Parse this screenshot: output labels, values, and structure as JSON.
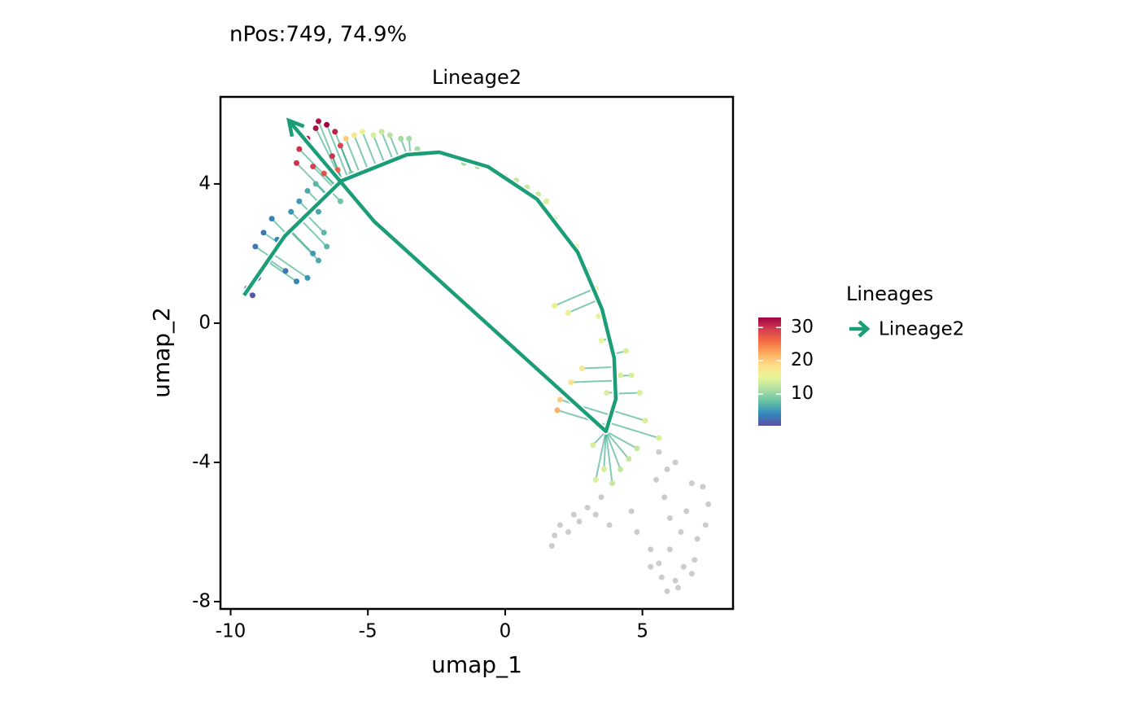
{
  "chart_data": {
    "type": "scatter",
    "title": "nPos:749, 74.9%",
    "subtitle": "Lineage2",
    "xlabel": "umap_1",
    "ylabel": "umap_2",
    "xlim": [
      -10.37,
      8.3
    ],
    "ylim": [
      -8.21,
      6.5
    ],
    "xticks": [
      -10,
      -5,
      0,
      5
    ],
    "yticks": [
      -8,
      -4,
      0,
      4
    ],
    "series": [
      {
        "x": [
          -9.4,
          -9.2,
          -9.0,
          -8.8,
          -9.1,
          -8.5,
          -8.3,
          -8.0,
          -7.6,
          -7.2,
          -7.0,
          -6.8,
          -7.5,
          -7.2,
          -6.8,
          -6.6,
          -6.5,
          -7.8,
          -6.9,
          -8.6,
          -7.5,
          -7.2,
          -6.9,
          -6.5,
          -6.2,
          -7.0,
          -6.6,
          -6.3,
          -6.0,
          -7.6,
          -6.8,
          -6.1,
          -5.8,
          -5.5,
          -5.2,
          -4.8,
          -4.5,
          -4.2,
          -3.8,
          -3.5,
          -5.9,
          -5.6,
          -6.0,
          -3.2,
          -2.5,
          -2.0,
          -1.5,
          -1.0,
          -0.5,
          0.0,
          0.4,
          0.8,
          1.2,
          1.5,
          1.8,
          2.2,
          2.6,
          3.0,
          3.3,
          1.8,
          2.3,
          3.4,
          3.5,
          4.4,
          4.6,
          4.9,
          5.1,
          5.6,
          2.8,
          2.4,
          2.0,
          1.9,
          3.2,
          3.6,
          3.9,
          4.2,
          4.5,
          3.3,
          4.8,
          4.2,
          3.7
        ],
        "y": [
          1.0,
          0.8,
          1.3,
          2.6,
          2.2,
          3.0,
          2.4,
          1.5,
          1.2,
          1.3,
          2.0,
          1.8,
          3.5,
          3.8,
          3.2,
          2.6,
          2.2,
          3.2,
          4.0,
          1.8,
          5.0,
          5.3,
          5.6,
          5.7,
          5.5,
          4.5,
          4.3,
          4.8,
          5.1,
          4.6,
          5.8,
          4.4,
          5.3,
          5.4,
          5.5,
          5.4,
          5.5,
          5.4,
          5.3,
          5.3,
          4.0,
          4.3,
          3.5,
          5.0,
          4.9,
          4.8,
          4.6,
          4.5,
          4.4,
          4.2,
          4.1,
          3.9,
          3.7,
          3.5,
          3.0,
          2.5,
          2.2,
          1.5,
          1.0,
          0.5,
          0.3,
          0.2,
          -0.5,
          -0.8,
          -1.5,
          -2.0,
          -2.8,
          -3.3,
          -1.3,
          -1.7,
          -2.2,
          -2.5,
          -3.5,
          -4.2,
          -4.6,
          -4.2,
          -3.9,
          -4.5,
          -3.6,
          -1.5,
          -2.0
        ],
        "color_values": [
          2,
          1,
          2,
          3,
          3,
          4,
          4,
          3,
          4,
          5,
          5,
          6,
          5,
          6,
          6,
          7,
          7,
          5,
          7,
          3,
          30,
          31,
          32,
          33,
          31,
          29,
          28,
          30,
          29,
          30,
          32,
          27,
          20,
          17,
          15,
          14,
          13,
          12,
          11,
          11,
          9,
          9,
          8,
          11,
          10,
          11,
          11,
          12,
          12,
          12,
          13,
          13,
          13,
          14,
          14,
          14,
          15,
          15,
          15,
          16,
          16,
          15,
          15,
          14,
          14,
          14,
          14,
          14,
          17,
          18,
          20,
          22,
          14,
          14,
          13,
          13,
          13,
          14,
          13,
          14,
          14
        ]
      },
      {
        "color": "#cccccc",
        "x": [
          3.5,
          3.3,
          3.0,
          2.5,
          2.0,
          1.8,
          1.7,
          2.3,
          2.7,
          3.8,
          4.6,
          4.8,
          5.3,
          5.5,
          5.6,
          5.9,
          6.2,
          5.8,
          6.0,
          6.4,
          6.8,
          7.2,
          7.4,
          7.3,
          7.0,
          6.9,
          6.5,
          6.2,
          6.3,
          5.7,
          5.6,
          5.3,
          6.0,
          6.6,
          6.8,
          5.9
        ],
        "y": [
          -5.0,
          -5.5,
          -5.3,
          -5.5,
          -5.8,
          -6.1,
          -6.4,
          -6.0,
          -5.7,
          -5.8,
          -5.4,
          -6.0,
          -6.5,
          -4.5,
          -3.7,
          -4.2,
          -4.0,
          -5.0,
          -5.6,
          -6.0,
          -4.6,
          -4.7,
          -5.2,
          -5.8,
          -6.2,
          -6.8,
          -7.0,
          -7.4,
          -7.6,
          -7.3,
          -6.9,
          -7.0,
          -6.5,
          -5.4,
          -7.2,
          -7.7
        ]
      }
    ],
    "lineage": {
      "name": "Lineage2",
      "color": "#1b9e77",
      "x": [
        -9.51,
        -8.03,
        -5.96,
        -3.58,
        -2.4,
        -0.62,
        1.16,
        2.64,
        3.53,
        3.97,
        4.03,
        3.67,
        -4.77,
        -7.88
      ],
      "y": [
        0.8,
        2.5,
        4.09,
        4.84,
        4.91,
        4.49,
        3.56,
        2.04,
        0.4,
        -1.0,
        -2.18,
        -3.11,
        2.92,
        5.82
      ]
    },
    "legend_title": "Lineages",
    "colorbar": {
      "lim": [
        0.5,
        33
      ],
      "ticks": [
        10,
        20,
        30
      ],
      "colormap": [
        "#5e4fa2",
        "#3288bd",
        "#66c2a5",
        "#abdda4",
        "#e6f598",
        "#fee08b",
        "#fdae61",
        "#f46d43",
        "#d53e4f",
        "#9e0142"
      ]
    }
  }
}
